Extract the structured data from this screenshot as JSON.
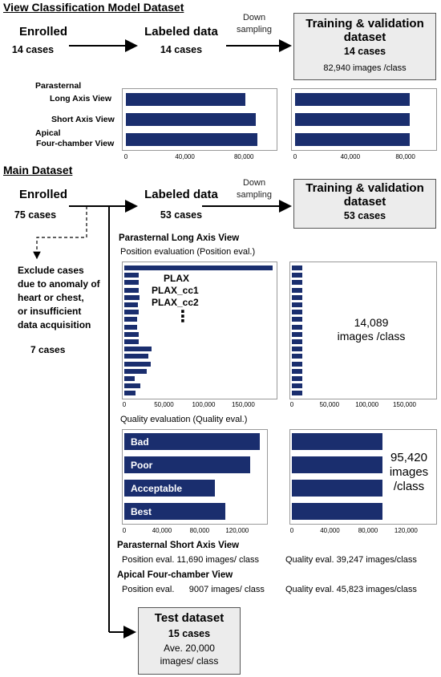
{
  "view_section": {
    "title": "View Classification Model Dataset",
    "enrolled": {
      "label": "Enrolled",
      "count": "14 cases"
    },
    "labeled": {
      "label": "Labeled data",
      "count": "14 cases"
    },
    "down_sampling": [
      "Down",
      "sampling"
    ],
    "training": {
      "title": [
        "Training & validation",
        "dataset"
      ],
      "count": "14 cases",
      "images": "82,940 images /class"
    },
    "category_labels": [
      [
        "Parasternal",
        "Long Axis View"
      ],
      [
        "Short Axis View"
      ],
      [
        "Apical",
        "Four-chamber View"
      ]
    ]
  },
  "main_section": {
    "title": "Main Dataset",
    "enrolled": {
      "label": "Enrolled",
      "count": "75 cases"
    },
    "labeled": {
      "label": "Labeled data",
      "count": "53 cases"
    },
    "down_sampling": [
      "Down",
      "sampling"
    ],
    "training": {
      "title": [
        "Training & validation",
        "dataset"
      ],
      "count": "53 cases"
    },
    "exclude": {
      "lines": [
        "Exclude cases",
        "due to anomaly of",
        "heart or chest,",
        "or insufficient",
        "data acquisition"
      ],
      "count": "7 cases"
    },
    "plax_title": "Parasternal Long Axis View",
    "position_subtitle": "Position evaluation (Position eval.)",
    "plax_callouts": [
      "PLAX",
      "PLAX_cc1",
      "PLAX_cc2"
    ],
    "ellipsis": "⋮",
    "position_after": [
      "14,089",
      "images /class"
    ],
    "quality_subtitle": "Quality evaluation (Quality eval.)",
    "quality_after": [
      "95,420",
      "images",
      "/class"
    ],
    "psax_title": "Parasternal Short Axis View",
    "psax_line": {
      "position": "Position eval. 11,690 images/ class",
      "quality": "Quality eval. 39,247 images/class"
    },
    "a4c_title": "Apical Four-chamber View",
    "a4c_line": {
      "position": "Position eval.      9007 images/ class",
      "quality": "Quality eval. 45,823 images/class"
    },
    "test": {
      "title": "Test dataset",
      "count": "15 cases",
      "images": [
        "Ave. 20,000",
        "images/ class"
      ]
    }
  },
  "chart_data": [
    {
      "type": "bar",
      "orientation": "horizontal",
      "series": [
        {
          "values": [
            81000,
            88000,
            89000
          ]
        }
      ],
      "categories": [
        "Parasternal Long Axis View",
        "Short Axis View",
        "Apical Four-chamber View"
      ],
      "xlim": [
        0,
        100000
      ],
      "xticks": [
        "0",
        "40,000",
        "80,000"
      ],
      "xtick_values": [
        0,
        40000,
        80000
      ]
    },
    {
      "type": "bar",
      "orientation": "horizontal",
      "series": [
        {
          "values": [
            82940,
            82940,
            82940
          ]
        }
      ],
      "categories": [
        "Parasternal Long Axis View",
        "Short Axis View",
        "Apical Four-chamber View"
      ],
      "xlim": [
        0,
        100000
      ],
      "xticks": [
        "0",
        "40,000",
        "80,000"
      ],
      "xtick_values": [
        0,
        40000,
        80000
      ]
    },
    {
      "type": "bar",
      "orientation": "horizontal",
      "series": [
        {
          "values": [
            187000,
            18000,
            18000,
            18000,
            19000,
            17000,
            18000,
            16000,
            16000,
            18000,
            18000,
            34000,
            30000,
            33000,
            28000,
            13000,
            20000,
            14000
          ]
        }
      ],
      "xlim": [
        0,
        190000
      ],
      "xticks": [
        "0",
        "50,000",
        "100,000",
        "150,000"
      ],
      "xtick_values": [
        0,
        50000,
        100000,
        150000
      ]
    },
    {
      "type": "bar",
      "orientation": "horizontal",
      "series": [
        {
          "values": [
            14089,
            14089,
            14089,
            14089,
            14089,
            14089,
            14089,
            14089,
            14089,
            14089,
            14089,
            14089,
            14089,
            14089,
            14089,
            14089,
            14089,
            14089
          ]
        }
      ],
      "xlim": [
        0,
        190000
      ],
      "xticks": [
        "0",
        "50,000",
        "100,000",
        "150,000"
      ],
      "xtick_values": [
        0,
        50000,
        100000,
        150000
      ]
    },
    {
      "type": "bar",
      "orientation": "horizontal",
      "categories": [
        "Bad",
        "Poor",
        "Acceptable",
        "Best"
      ],
      "series": [
        {
          "values": [
            144000,
            134000,
            96000,
            107000
          ]
        }
      ],
      "xlim": [
        0,
        150000
      ],
      "xticks": [
        "0",
        "40,000",
        "80,000",
        "120,000"
      ],
      "xtick_values": [
        0,
        40000,
        80000,
        120000
      ]
    },
    {
      "type": "bar",
      "orientation": "horizontal",
      "categories": [
        "Bad",
        "Poor",
        "Acceptable",
        "Best"
      ],
      "series": [
        {
          "values": [
            95420,
            95420,
            95420,
            95420
          ]
        }
      ],
      "xlim": [
        0,
        150000
      ],
      "xticks": [
        "0",
        "40,000",
        "80,000",
        "120,000"
      ],
      "xtick_values": [
        0,
        40000,
        80000,
        120000
      ]
    }
  ]
}
